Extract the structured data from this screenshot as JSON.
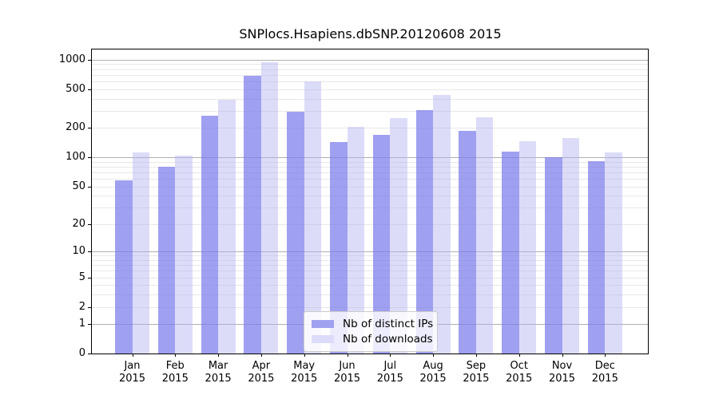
{
  "chart_data": {
    "type": "bar",
    "title": "SNPlocs.Hsapiens.dbSNP.20120608 2015",
    "xlabel": "",
    "ylabel": "",
    "categories": [
      "Jan",
      "Feb",
      "Mar",
      "Apr",
      "May",
      "Jun",
      "Jul",
      "Aug",
      "Sep",
      "Oct",
      "Nov",
      "Dec"
    ],
    "year_label": "2015",
    "series": [
      {
        "name": "Nb of distinct IPs",
        "color": "#a1a1f1",
        "fill": "rgba(124,124,235,0.72)",
        "values": [
          58,
          80,
          265,
          690,
          293,
          144,
          170,
          305,
          187,
          114,
          101,
          91
        ]
      },
      {
        "name": "Nb of downloads",
        "color": "#dcdcf9",
        "fill": "rgba(178,178,242,0.46)",
        "values": [
          112,
          104,
          390,
          945,
          600,
          205,
          252,
          436,
          257,
          146,
          158,
          112
        ]
      }
    ],
    "yscale": "log1p",
    "ylim": [
      0,
      1272
    ],
    "yticks": [
      0,
      1,
      2,
      5,
      10,
      20,
      50,
      100,
      200,
      500,
      1000
    ],
    "major_gridlines": [
      1,
      10,
      100,
      1000
    ],
    "minor_gridlines": [
      2,
      3,
      4,
      5,
      6,
      7,
      8,
      9,
      20,
      30,
      40,
      50,
      60,
      70,
      80,
      90,
      200,
      300,
      400,
      500,
      600,
      700,
      800,
      900
    ],
    "grid": "horizontal",
    "legend_position": "lower-center-inside"
  },
  "legend": {
    "items": [
      {
        "label": "Nb of distinct IPs",
        "swatch_color": "#a1a1f1"
      },
      {
        "label": "Nb of downloads",
        "swatch_color": "#dcdcf9"
      }
    ]
  },
  "colors": {
    "background": "#ffffff",
    "axis": "#000000",
    "major_grid": "#b0b0b0",
    "minor_grid": "#e8e8e8",
    "bar_ips": "#a1a1f1",
    "bar_downloads": "#dcdcf9"
  }
}
